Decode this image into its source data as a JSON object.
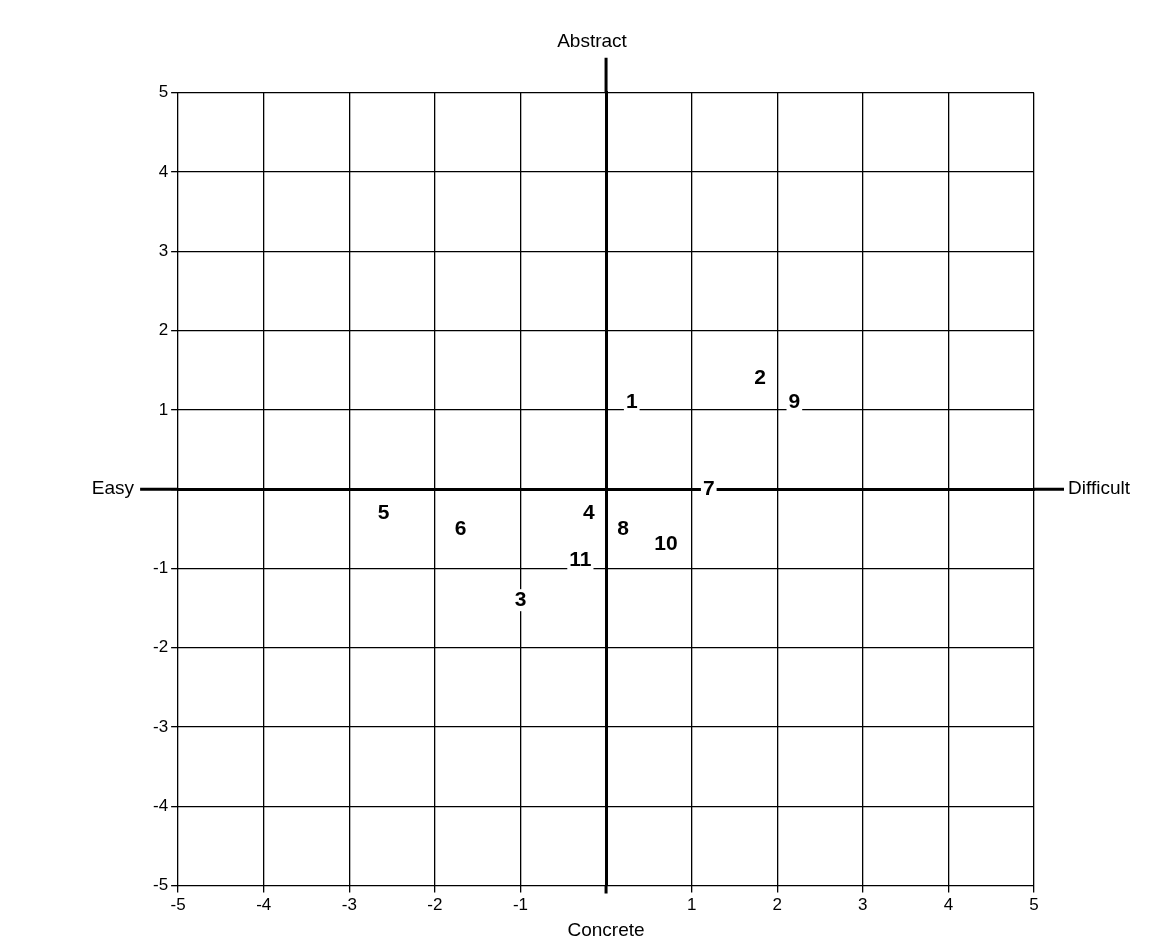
{
  "chart_data": {
    "type": "scatter",
    "title": "Abstract",
    "xlabel": "Concrete",
    "annotations": [
      "Easy",
      "Difficult",
      {
        "text": "1",
        "x": 0.3,
        "y": 1.1
      },
      {
        "text": "2",
        "x": 1.8,
        "y": 1.4
      },
      {
        "text": "3",
        "x": -1.0,
        "y": -1.4
      },
      {
        "text": "4",
        "x": -0.2,
        "y": -0.3
      },
      {
        "text": "5",
        "x": -2.6,
        "y": -0.3
      },
      {
        "text": "6",
        "x": -1.7,
        "y": -0.5
      },
      {
        "text": "7",
        "x": 1.2,
        "y": 0
      },
      {
        "text": "8",
        "x": 0.2,
        "y": -0.5
      },
      {
        "text": "9",
        "x": 2.2,
        "y": 1.1
      },
      {
        "text": "10",
        "x": 0.7,
        "y": -0.7
      },
      {
        "text": "11",
        "x": -0.3,
        "y": -0.9
      }
    ],
    "xlim": [
      -5,
      5
    ],
    "xticks": [
      -5,
      -4,
      -3,
      -2,
      -1,
      {
        "value": 0,
        "label": null
      },
      1,
      2,
      3,
      4,
      5
    ],
    "ylim": [
      -5,
      5
    ],
    "yticks": [
      -5,
      -4,
      -3,
      -2,
      -1,
      {
        "value": 0,
        "label": null
      },
      1,
      2,
      3,
      4,
      5
    ],
    "grid": true,
    "legend": false
  }
}
